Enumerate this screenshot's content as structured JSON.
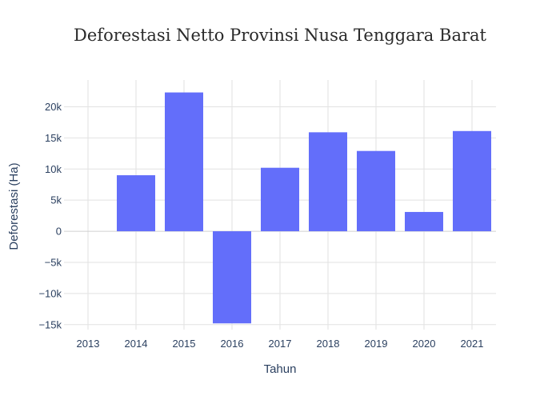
{
  "chart_data": {
    "type": "bar",
    "title": "Deforestasi Netto Provinsi Nusa Tenggara Barat",
    "xlabel": "Tahun",
    "ylabel": "Deforestasi (Ha)",
    "categories": [
      "2013",
      "2014",
      "2015",
      "2016",
      "2017",
      "2018",
      "2019",
      "2020",
      "2021"
    ],
    "values": [
      0,
      9000,
      22300,
      -14800,
      10200,
      15900,
      12900,
      3100,
      16100
    ],
    "ylim": [
      -15800,
      24300
    ],
    "yticks": [
      -15000,
      -10000,
      -5000,
      0,
      5000,
      10000,
      15000,
      20000
    ],
    "ytick_labels": [
      "−15k",
      "−10k",
      "−5k",
      "0",
      "5k",
      "10k",
      "15k",
      "20k"
    ],
    "grid": true,
    "legend": "none",
    "bar_color": "#636efa"
  }
}
